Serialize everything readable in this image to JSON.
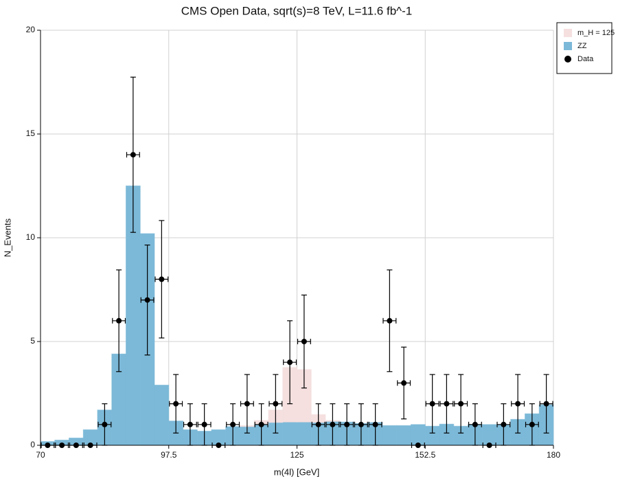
{
  "chart_data": {
    "type": "histogram",
    "title": "CMS Open Data, sqrt(s)=8 TeV, L=11.6 fb^-1",
    "x_label": "m(4l) [GeV]",
    "y_label": "N_Events",
    "bins": [
      70,
      73.06,
      76.11,
      79.17,
      82.22,
      85.28,
      88.33,
      91.39,
      94.44,
      97.5,
      100.56,
      103.61,
      106.67,
      109.72,
      112.78,
      115.83,
      118.89,
      121.94,
      125,
      128.06,
      131.11,
      134.17,
      137.22,
      140.28,
      143.33,
      146.39,
      149.44,
      152.5,
      155.56,
      158.61,
      161.67,
      164.72,
      167.78,
      170.83,
      173.89,
      176.94,
      180
    ],
    "series": [
      {
        "name": "ZZ",
        "color": "#7cb9d8",
        "values": [
          0.18,
          0.25,
          0.35,
          0.75,
          1.7,
          4.4,
          12.5,
          10.2,
          2.9,
          1.17,
          0.75,
          0.68,
          0.75,
          0.9,
          0.9,
          1.0,
          1.1,
          1.12,
          1.12,
          1.1,
          1.15,
          1.12,
          1.05,
          1.1,
          0.95,
          0.95,
          1.0,
          0.92,
          1.02,
          0.92,
          1.0,
          1.0,
          0.98,
          1.25,
          1.52,
          1.95
        ]
      },
      {
        "name": "m_H = 125",
        "color": "#f5dfdf",
        "values": [
          0,
          0,
          0,
          0,
          0,
          0,
          0,
          0,
          0,
          0,
          0,
          0,
          0,
          0,
          0.05,
          0.2,
          0.6,
          2.63,
          2.53,
          0.38,
          0.05,
          0,
          0,
          0,
          0,
          0,
          0,
          0,
          0,
          0,
          0,
          0,
          0,
          0,
          0,
          0
        ]
      }
    ],
    "data": {
      "name": "Data",
      "color": "#000000",
      "values": [
        0,
        0,
        0,
        0,
        1,
        6,
        14,
        7,
        8,
        2,
        1,
        1,
        0,
        1,
        2,
        1,
        2,
        4,
        5,
        1,
        1,
        1,
        1,
        1,
        6,
        3,
        0,
        2,
        2,
        2,
        1,
        0,
        1,
        2,
        1,
        2
      ],
      "errors": [
        0,
        0,
        0,
        0,
        1,
        2.45,
        3.74,
        2.65,
        2.83,
        1.41,
        1,
        1,
        0,
        1,
        1.41,
        1,
        1.41,
        2,
        2.24,
        1,
        1,
        1,
        1,
        1,
        2.45,
        1.73,
        0,
        1.41,
        1.41,
        1.41,
        1,
        0,
        1,
        1.41,
        1,
        1.41
      ]
    },
    "xlim": [
      70,
      180
    ],
    "xticks": [
      70,
      97.5,
      125,
      152.5,
      180
    ],
    "ylim": [
      0,
      20
    ],
    "yticks": [
      0,
      5,
      10,
      15,
      20
    ],
    "grid": true,
    "legend": "upper right"
  }
}
